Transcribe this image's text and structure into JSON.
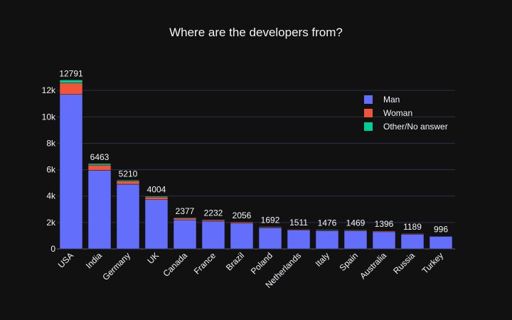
{
  "chart_data": {
    "type": "bar",
    "stacked": true,
    "title": "Where are the developers from?",
    "xlabel": "",
    "ylabel": "",
    "categories": [
      "USA",
      "India",
      "Germany",
      "UK",
      "Canada",
      "France",
      "Brazil",
      "Poland",
      "Netherlands",
      "Italy",
      "Spain",
      "Australia",
      "Russia",
      "Turkey"
    ],
    "totals": [
      12791,
      6463,
      5210,
      4004,
      2377,
      2232,
      2056,
      1692,
      1511,
      1476,
      1469,
      1396,
      1189,
      996
    ],
    "series": [
      {
        "name": "Man",
        "color": "#636efa",
        "values": [
          11700,
          5950,
          4900,
          3730,
          2200,
          2100,
          1950,
          1600,
          1420,
          1380,
          1370,
          1300,
          1110,
          950
        ]
      },
      {
        "name": "Woman",
        "color": "#ef553b",
        "values": [
          860,
          400,
          230,
          200,
          130,
          100,
          85,
          55,
          60,
          50,
          60,
          70,
          55,
          30
        ]
      },
      {
        "name": "Other/No answer",
        "color": "#00cc96",
        "values": [
          231,
          113,
          80,
          74,
          47,
          32,
          21,
          37,
          31,
          46,
          39,
          26,
          24,
          16
        ]
      }
    ],
    "yticks": [
      0,
      2000,
      4000,
      6000,
      8000,
      10000,
      12000
    ],
    "ytick_labels": [
      "0",
      "2k",
      "4k",
      "6k",
      "8k",
      "10k",
      "12k"
    ],
    "ylim": [
      0,
      13464
    ],
    "grid": true,
    "legend_position": "top-right"
  }
}
